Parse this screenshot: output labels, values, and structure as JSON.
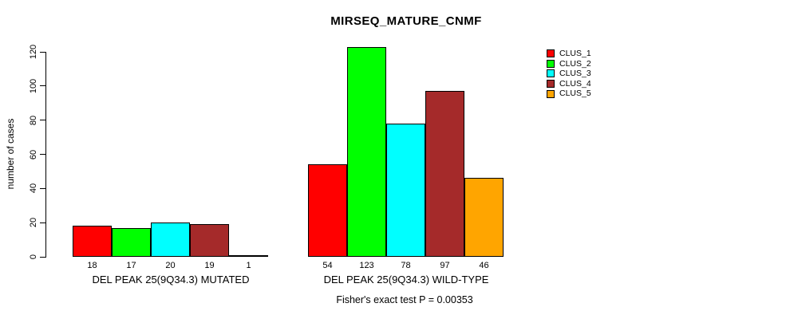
{
  "chart_data": {
    "type": "bar",
    "title": "MIRSEQ_MATURE_CNMF",
    "ylabel": "number of cases",
    "xlabel": "",
    "ylim": [
      0,
      120
    ],
    "yticks": [
      0,
      20,
      40,
      60,
      80,
      100,
      120
    ],
    "grid": false,
    "legend_position": "top-right",
    "categories": [
      "DEL PEAK 25(9Q34.3) MUTATED",
      "DEL PEAK 25(9Q34.3) WILD-TYPE"
    ],
    "series": [
      {
        "name": "CLUS_1",
        "color": "#FF0000",
        "values": [
          18,
          54
        ]
      },
      {
        "name": "CLUS_2",
        "color": "#00FF00",
        "values": [
          17,
          123
        ]
      },
      {
        "name": "CLUS_3",
        "color": "#00FFFF",
        "values": [
          20,
          78
        ]
      },
      {
        "name": "CLUS_4",
        "color": "#A52A2A",
        "values": [
          19,
          97
        ]
      },
      {
        "name": "CLUS_5",
        "color": "#FFA500",
        "values": [
          1,
          46
        ]
      }
    ],
    "bar_value_labels": [
      [
        18,
        17,
        20,
        19,
        1
      ],
      [
        54,
        123,
        78,
        97,
        46
      ]
    ],
    "annotation": "Fisher's exact test P = 0.00353"
  }
}
